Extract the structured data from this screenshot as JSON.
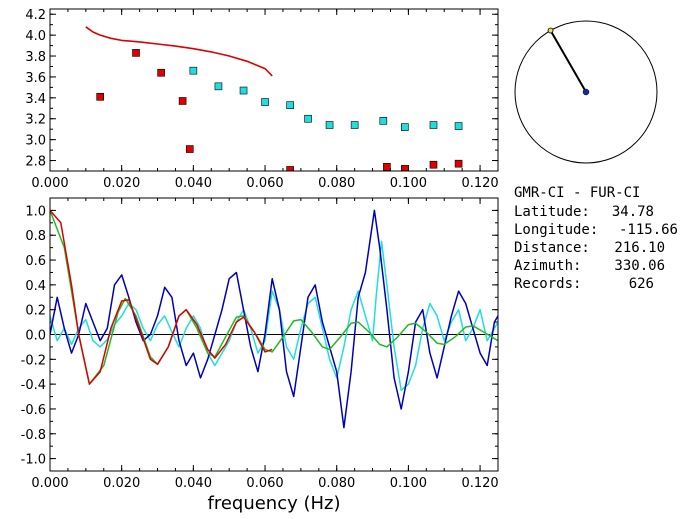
{
  "colors": {
    "red": "#dd0000",
    "cyan": "#22dddd",
    "blue": "#0000bb",
    "green": "#22bb22",
    "marker_edge": "#000000",
    "compass_dot": "#1a2a9a",
    "compass_tip": "#e8e060"
  },
  "station_info": {
    "pair": "GMR-CI  - FUR-CI",
    "rows": [
      {
        "label": "Latitude:",
        "value": "34.78"
      },
      {
        "label": "Longitude:",
        "value": "-115.66"
      },
      {
        "label": "Distance:",
        "value": "216.10"
      },
      {
        "label": "Azimuth:",
        "value": "330.06"
      },
      {
        "label": "Records:",
        "value": "626"
      }
    ]
  },
  "compass": {
    "azimuth_deg": 330.06
  },
  "chart_data": [
    {
      "type": "scatter",
      "xlim": [
        0.0,
        0.125
      ],
      "ylim": [
        2.7,
        4.25
      ],
      "x_ticks": [
        "0.000",
        "0.020",
        "0.040",
        "0.060",
        "0.080",
        "0.100",
        "0.120"
      ],
      "y_ticks": [
        "2.8",
        "3.0",
        "3.2",
        "3.4",
        "3.6",
        "3.8",
        "4.0",
        "4.2"
      ],
      "x_tick_values": [
        0.0,
        0.02,
        0.04,
        0.06,
        0.08,
        0.1,
        0.12
      ],
      "y_tick_values": [
        2.8,
        3.0,
        3.2,
        3.4,
        3.6,
        3.8,
        4.0,
        4.2
      ],
      "series": [
        {
          "kind": "line",
          "color": "red",
          "points": [
            [
              0.01,
              4.08
            ],
            [
              0.012,
              4.03
            ],
            [
              0.014,
              4.0
            ],
            [
              0.017,
              3.97
            ],
            [
              0.02,
              3.95
            ],
            [
              0.025,
              3.935
            ],
            [
              0.03,
              3.915
            ],
            [
              0.035,
              3.895
            ],
            [
              0.04,
              3.87
            ],
            [
              0.045,
              3.84
            ],
            [
              0.05,
              3.8
            ],
            [
              0.055,
              3.75
            ],
            [
              0.06,
              3.68
            ],
            [
              0.062,
              3.61
            ]
          ]
        },
        {
          "kind": "markers",
          "color": "red",
          "points": [
            [
              0.014,
              3.41
            ],
            [
              0.024,
              3.83
            ],
            [
              0.031,
              3.64
            ],
            [
              0.037,
              3.37
            ],
            [
              0.039,
              2.91
            ],
            [
              0.067,
              2.71
            ],
            [
              0.094,
              2.74
            ],
            [
              0.099,
              2.72
            ],
            [
              0.107,
              2.76
            ],
            [
              0.114,
              2.77
            ]
          ]
        },
        {
          "kind": "markers",
          "color": "cyan",
          "points": [
            [
              0.04,
              3.66
            ],
            [
              0.047,
              3.51
            ],
            [
              0.054,
              3.47
            ],
            [
              0.06,
              3.36
            ],
            [
              0.067,
              3.33
            ],
            [
              0.072,
              3.2
            ],
            [
              0.078,
              3.14
            ],
            [
              0.085,
              3.14
            ],
            [
              0.093,
              3.18
            ],
            [
              0.099,
              3.12
            ],
            [
              0.107,
              3.14
            ],
            [
              0.114,
              3.13
            ]
          ]
        }
      ]
    },
    {
      "type": "line",
      "xlabel": "frequency  (Hz)",
      "xlim": [
        0.0,
        0.125
      ],
      "ylim": [
        -1.1,
        1.1
      ],
      "x_ticks": [
        "0.000",
        "0.020",
        "0.040",
        "0.060",
        "0.080",
        "0.100",
        "0.120"
      ],
      "y_ticks": [
        "1.0",
        "0.8",
        "0.6",
        "0.4",
        "0.2",
        "0.0",
        "-0.2",
        "-0.4",
        "-0.6",
        "-0.8",
        "-1.0"
      ],
      "x_tick_values": [
        0.0,
        0.02,
        0.04,
        0.06,
        0.08,
        0.1,
        0.12
      ],
      "y_tick_values": [
        1.0,
        0.8,
        0.6,
        0.4,
        0.2,
        0.0,
        -0.2,
        -0.4,
        -0.6,
        -0.8,
        -1.0
      ],
      "series": [
        {
          "color": "cyan",
          "points": [
            [
              0.0,
              0.15
            ],
            [
              0.002,
              -0.05
            ],
            [
              0.004,
              0.05
            ],
            [
              0.006,
              -0.08
            ],
            [
              0.008,
              0.05
            ],
            [
              0.01,
              0.12
            ],
            [
              0.012,
              -0.05
            ],
            [
              0.014,
              -0.1
            ],
            [
              0.016,
              -0.04
            ],
            [
              0.018,
              0.08
            ],
            [
              0.02,
              0.15
            ],
            [
              0.022,
              0.25
            ],
            [
              0.024,
              0.2
            ],
            [
              0.026,
              0.05
            ],
            [
              0.028,
              -0.05
            ],
            [
              0.03,
              0.08
            ],
            [
              0.032,
              0.15
            ],
            [
              0.034,
              0.02
            ],
            [
              0.036,
              -0.1
            ],
            [
              0.038,
              0.05
            ],
            [
              0.04,
              0.15
            ],
            [
              0.042,
              0.05
            ],
            [
              0.044,
              -0.15
            ],
            [
              0.046,
              -0.25
            ],
            [
              0.048,
              -0.15
            ],
            [
              0.05,
              -0.05
            ],
            [
              0.052,
              0.1
            ],
            [
              0.054,
              0.2
            ],
            [
              0.056,
              0.05
            ],
            [
              0.058,
              -0.15
            ],
            [
              0.06,
              -0.05
            ],
            [
              0.062,
              0.35
            ],
            [
              0.064,
              0.2
            ],
            [
              0.066,
              -0.1
            ],
            [
              0.068,
              -0.2
            ],
            [
              0.07,
              0.05
            ],
            [
              0.072,
              0.25
            ],
            [
              0.074,
              0.3
            ],
            [
              0.076,
              0.05
            ],
            [
              0.078,
              -0.2
            ],
            [
              0.08,
              -0.35
            ],
            [
              0.082,
              -0.1
            ],
            [
              0.084,
              0.2
            ],
            [
              0.086,
              0.35
            ],
            [
              0.088,
              0.15
            ],
            [
              0.09,
              -0.05
            ],
            [
              0.091,
              0.3
            ],
            [
              0.0925,
              0.75
            ],
            [
              0.094,
              0.4
            ],
            [
              0.096,
              -0.1
            ],
            [
              0.098,
              -0.45
            ],
            [
              0.1,
              -0.4
            ],
            [
              0.102,
              -0.25
            ],
            [
              0.104,
              0.05
            ],
            [
              0.106,
              0.25
            ],
            [
              0.108,
              0.15
            ],
            [
              0.11,
              -0.05
            ],
            [
              0.112,
              0.1
            ],
            [
              0.114,
              0.2
            ],
            [
              0.116,
              -0.05
            ],
            [
              0.118,
              0.05
            ],
            [
              0.12,
              0.2
            ],
            [
              0.122,
              -0.05
            ],
            [
              0.125,
              0.1
            ]
          ]
        },
        {
          "color": "blue",
          "points": [
            [
              0.0,
              0.0
            ],
            [
              0.002,
              0.3
            ],
            [
              0.004,
              0.05
            ],
            [
              0.006,
              -0.15
            ],
            [
              0.008,
              0.0
            ],
            [
              0.01,
              0.25
            ],
            [
              0.012,
              0.1
            ],
            [
              0.014,
              -0.05
            ],
            [
              0.016,
              0.05
            ],
            [
              0.018,
              0.4
            ],
            [
              0.02,
              0.48
            ],
            [
              0.022,
              0.3
            ],
            [
              0.024,
              0.1
            ],
            [
              0.026,
              -0.05
            ],
            [
              0.028,
              0.0
            ],
            [
              0.03,
              0.15
            ],
            [
              0.032,
              0.38
            ],
            [
              0.034,
              0.3
            ],
            [
              0.036,
              -0.05
            ],
            [
              0.038,
              -0.25
            ],
            [
              0.04,
              -0.15
            ],
            [
              0.042,
              -0.35
            ],
            [
              0.044,
              -0.2
            ],
            [
              0.046,
              0.0
            ],
            [
              0.048,
              0.2
            ],
            [
              0.05,
              0.45
            ],
            [
              0.052,
              0.5
            ],
            [
              0.054,
              0.2
            ],
            [
              0.056,
              -0.1
            ],
            [
              0.058,
              -0.3
            ],
            [
              0.06,
              0.0
            ],
            [
              0.062,
              0.45
            ],
            [
              0.064,
              0.2
            ],
            [
              0.066,
              -0.3
            ],
            [
              0.068,
              -0.5
            ],
            [
              0.07,
              -0.1
            ],
            [
              0.072,
              0.3
            ],
            [
              0.074,
              0.4
            ],
            [
              0.076,
              0.1
            ],
            [
              0.078,
              -0.1
            ],
            [
              0.08,
              -0.3
            ],
            [
              0.082,
              -0.75
            ],
            [
              0.084,
              -0.3
            ],
            [
              0.086,
              0.3
            ],
            [
              0.088,
              0.5
            ],
            [
              0.0905,
              1.0
            ],
            [
              0.092,
              0.7
            ],
            [
              0.094,
              0.2
            ],
            [
              0.096,
              -0.35
            ],
            [
              0.098,
              -0.6
            ],
            [
              0.1,
              -0.3
            ],
            [
              0.102,
              0.1
            ],
            [
              0.104,
              0.2
            ],
            [
              0.106,
              -0.15
            ],
            [
              0.108,
              -0.35
            ],
            [
              0.11,
              -0.1
            ],
            [
              0.112,
              0.15
            ],
            [
              0.114,
              0.35
            ],
            [
              0.116,
              0.25
            ],
            [
              0.118,
              0.05
            ],
            [
              0.12,
              -0.15
            ],
            [
              0.122,
              -0.25
            ],
            [
              0.124,
              0.1
            ],
            [
              0.125,
              0.15
            ]
          ]
        },
        {
          "color": "green",
          "points": [
            [
              0.0,
              1.0
            ],
            [
              0.004,
              0.7
            ],
            [
              0.008,
              0.0
            ],
            [
              0.011,
              -0.4
            ],
            [
              0.015,
              -0.25
            ],
            [
              0.019,
              0.18
            ],
            [
              0.021,
              0.29
            ],
            [
              0.024,
              0.15
            ],
            [
              0.028,
              -0.18
            ],
            [
              0.03,
              -0.24
            ],
            [
              0.033,
              -0.1
            ],
            [
              0.036,
              0.15
            ],
            [
              0.038,
              0.2
            ],
            [
              0.041,
              0.05
            ],
            [
              0.044,
              -0.15
            ],
            [
              0.046,
              -0.18
            ],
            [
              0.049,
              -0.02
            ],
            [
              0.052,
              0.14
            ],
            [
              0.054,
              0.15
            ],
            [
              0.057,
              0.02
            ],
            [
              0.06,
              -0.12
            ],
            [
              0.062,
              -0.14
            ],
            [
              0.065,
              -0.02
            ],
            [
              0.068,
              0.11
            ],
            [
              0.07,
              0.12
            ],
            [
              0.073,
              0.02
            ],
            [
              0.076,
              -0.1
            ],
            [
              0.078,
              -0.12
            ],
            [
              0.081,
              -0.02
            ],
            [
              0.084,
              0.09
            ],
            [
              0.086,
              0.1
            ],
            [
              0.089,
              0.02
            ],
            [
              0.092,
              -0.08
            ],
            [
              0.094,
              -0.1
            ],
            [
              0.097,
              -0.02
            ],
            [
              0.1,
              0.08
            ],
            [
              0.102,
              0.09
            ],
            [
              0.105,
              0.02
            ],
            [
              0.108,
              -0.07
            ],
            [
              0.11,
              -0.08
            ],
            [
              0.113,
              -0.02
            ],
            [
              0.116,
              0.06
            ],
            [
              0.118,
              0.07
            ],
            [
              0.121,
              0.02
            ],
            [
              0.125,
              -0.05
            ]
          ]
        },
        {
          "color": "red",
          "points": [
            [
              0.0,
              1.0
            ],
            [
              0.003,
              0.9
            ],
            [
              0.006,
              0.4
            ],
            [
              0.008,
              0.0
            ],
            [
              0.011,
              -0.4
            ],
            [
              0.014,
              -0.3
            ],
            [
              0.017,
              0.05
            ],
            [
              0.02,
              0.27
            ],
            [
              0.022,
              0.28
            ],
            [
              0.025,
              0.05
            ],
            [
              0.028,
              -0.2
            ],
            [
              0.03,
              -0.24
            ],
            [
              0.033,
              -0.1
            ],
            [
              0.036,
              0.15
            ],
            [
              0.038,
              0.2
            ],
            [
              0.041,
              0.08
            ],
            [
              0.044,
              -0.12
            ],
            [
              0.046,
              -0.19
            ],
            [
              0.049,
              -0.08
            ],
            [
              0.052,
              0.1
            ],
            [
              0.054,
              0.14
            ],
            [
              0.057,
              0.02
            ],
            [
              0.06,
              -0.14
            ],
            [
              0.062,
              -0.12
            ]
          ]
        }
      ]
    }
  ]
}
